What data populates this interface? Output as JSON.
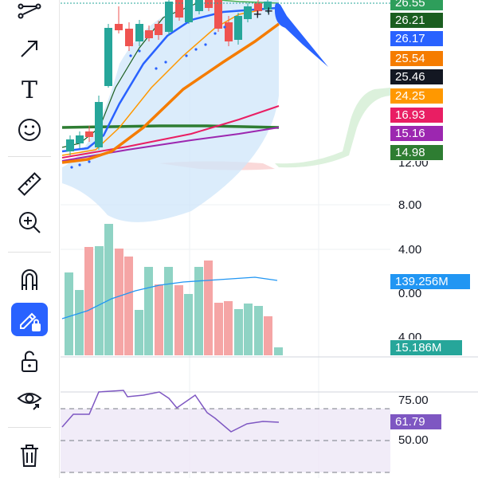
{
  "toolbar": {
    "tools": [
      {
        "icon": "line-tools-icon"
      },
      {
        "icon": "arrow-icon"
      },
      {
        "icon": "text-icon",
        "glyph": "T"
      },
      {
        "icon": "emoji-icon"
      },
      {
        "icon": "ruler-icon"
      },
      {
        "icon": "zoom-in-icon"
      },
      {
        "icon": "magnet-icon"
      },
      {
        "icon": "lock-drawing-icon",
        "active": true
      },
      {
        "icon": "unlock-icon"
      },
      {
        "icon": "eye-icon"
      },
      {
        "icon": "trash-icon"
      }
    ]
  },
  "price_labels": [
    {
      "text": "26.55",
      "color": "#2e9e5b"
    },
    {
      "text": "26.21",
      "color": "#1b5e20"
    },
    {
      "text": "26.17",
      "color": "#2962ff"
    },
    {
      "text": "25.54",
      "color": "#f57c00"
    },
    {
      "text": "25.46",
      "color": "#131722"
    },
    {
      "text": "24.25",
      "color": "#ff9800"
    },
    {
      "text": "16.93",
      "color": "#e91e63"
    },
    {
      "text": "15.16",
      "color": "#9c27b0"
    },
    {
      "text": "14.98",
      "color": "#2e7d32"
    }
  ],
  "axis": {
    "price_partial": "12.00",
    "price_8": "8.00",
    "price_4": "4.00",
    "volume_zero": "0.00",
    "volume_partial": "4.00",
    "rsi_75": "75.00",
    "rsi_50": "50.00"
  },
  "volume": {
    "ma_label": "139.256M",
    "ma_color": "#2196f3",
    "current_label": "15.186M",
    "current_color": "#26a69a"
  },
  "rsi": {
    "value_label": "61.79",
    "color": "#7e57c2"
  },
  "colors": {
    "up": "#26a69a",
    "down": "#ef5350",
    "accent": "#2962ff"
  }
}
